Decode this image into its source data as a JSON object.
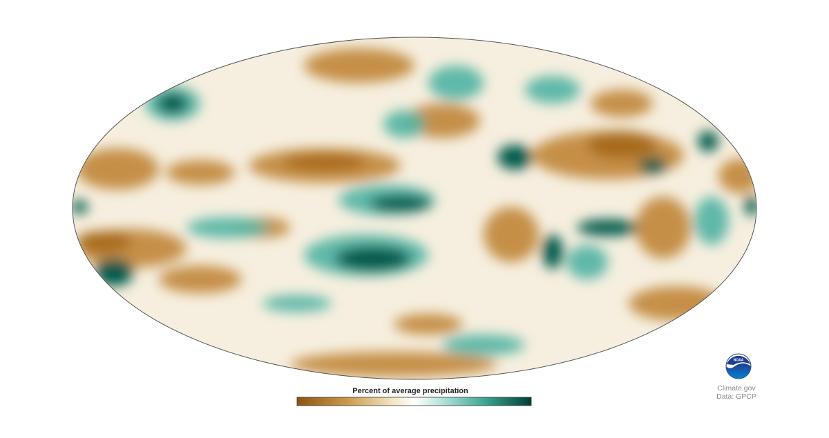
{
  "legend": {
    "title": "Percent of average precipitation"
  },
  "logo": {
    "text": "NOAA"
  },
  "credits": {
    "source": "Climate.gov",
    "data": "Data: GPCP"
  }
}
